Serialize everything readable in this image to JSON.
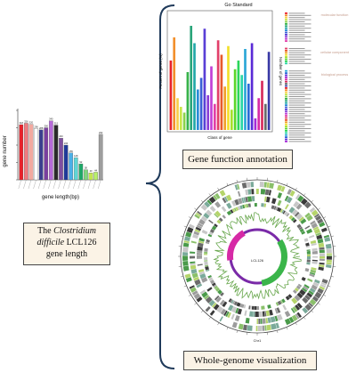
{
  "left_panel": {
    "ylabel": "gene number",
    "xlabel": "gene length(bp)",
    "caption": {
      "line1_prefix": "The ",
      "line1_italic": "Clostridium",
      "line2_italic": "difficile",
      "line2_suffix": " LCL126",
      "line3": "gene length"
    }
  },
  "top_right": {
    "title": "Go Standard",
    "xlabel": "Class of gene",
    "ylabel_left": "Percent of genes (%)",
    "ylabel_right": "Number of genes",
    "label": "Gene function annotation",
    "category_labels": [
      "molecular function",
      "cellular component",
      "biological process"
    ]
  },
  "bottom_right": {
    "label": "Whole-genome visualization",
    "center_text": "LCL126",
    "bottom_text": "Chr1"
  },
  "chart_data": [
    {
      "type": "bar",
      "title": "",
      "xlabel": "gene length(bp)",
      "ylabel": "gene number",
      "values": [
        318,
        326,
        320,
        296,
        288,
        300,
        340,
        315,
        240,
        200,
        155,
        128,
        92,
        58,
        40,
        44,
        262
      ],
      "value_labels": [
        "318",
        "326",
        "320",
        "296",
        "288",
        "300",
        "340",
        "315",
        "240",
        "200",
        "155",
        "128",
        "92",
        "58",
        "40",
        "44",
        "262"
      ],
      "colors": [
        "#e8222b",
        "#f07a7f",
        "#f2a9a0",
        "#ffffff",
        "#3b3f8f",
        "#7b3fa0",
        "#b66ad8",
        "#2a2a2a",
        "#7f4fa0",
        "#1f3a99",
        "#4bb0e8",
        "#5fd6d6",
        "#1ea868",
        "#7ed67e",
        "#c4e64f",
        "#b8f06a",
        "#9e9e9e"
      ]
    },
    {
      "type": "bar",
      "title": "Go Standard",
      "xlabel": "Class of gene",
      "ylabel": "Percent of genes (%)",
      "values": [
        2.4,
        3.2,
        1.1,
        0.8,
        0.6,
        2.0,
        3.6,
        3.0,
        1.4,
        1.8,
        3.5,
        1.2,
        2.2,
        0.9,
        3.1,
        2.6,
        1.5,
        2.9,
        0.7,
        2.1,
        2.4,
        1.9,
        2.8,
        1.6,
        3.0,
        0.4,
        1.1,
        1.7,
        0.9,
        2.7
      ],
      "colors": [
        "#e8222b",
        "#f2902d",
        "#f7d04a",
        "#c8e64a",
        "#8ad24a",
        "#36b24a",
        "#2aa57a",
        "#21a8a8",
        "#2a8ad6",
        "#3a5fd6",
        "#5a3fd6",
        "#8a3fd6",
        "#c23fd6",
        "#e23fa8",
        "#e23f6a",
        "#e85a2a",
        "#f0a02a",
        "#f2e02a",
        "#a6e02a",
        "#5ad62a",
        "#2ad65a",
        "#2ad6a6",
        "#2aa6d6",
        "#2a6ad6",
        "#5a2ad6",
        "#a62ad6",
        "#d62aa6",
        "#d62a5a",
        "#6a6a6a",
        "#3a3aa6"
      ]
    }
  ]
}
